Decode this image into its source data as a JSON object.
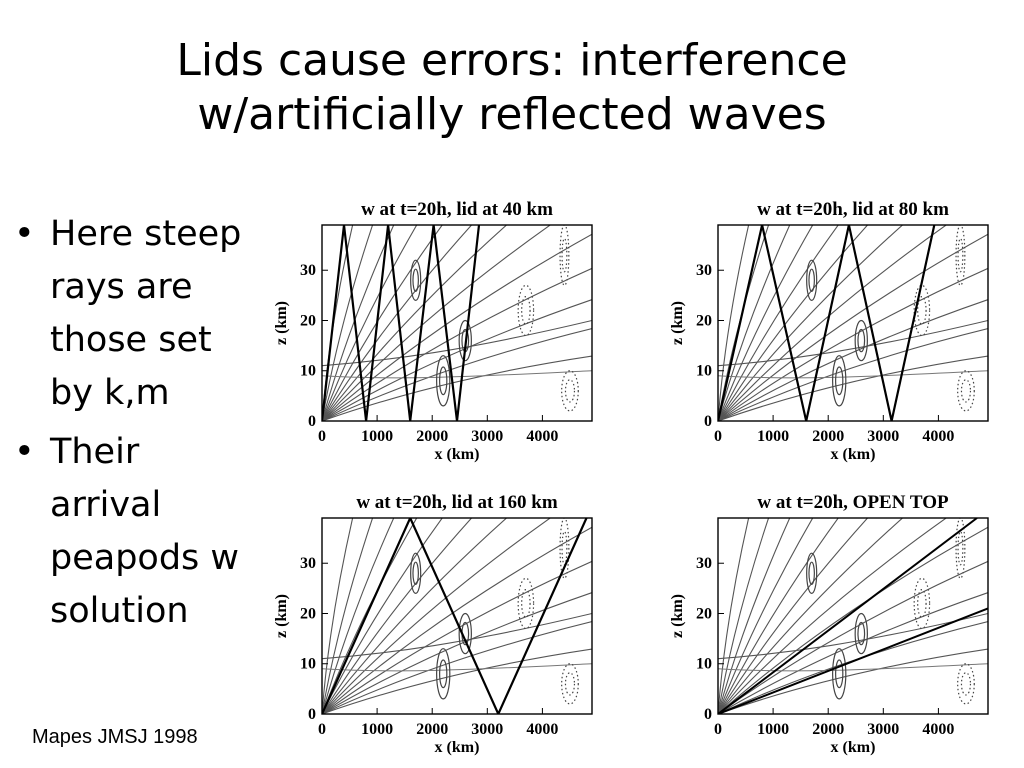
{
  "slide": {
    "title_lines": [
      "Lids cause errors: interference",
      "w/artificially reflected waves"
    ],
    "bullets": [
      {
        "lines": [
          "Here steep",
          "rays are",
          "those set",
          "by k,m"
        ]
      },
      {
        "lines": [
          "Their",
          "arrival",
          "peapods w",
          "solution"
        ]
      }
    ],
    "bullet_glyph": "•",
    "citation": "Mapes JMSJ 1998"
  },
  "figure": {
    "xlabel": "x (km)",
    "ylabel": "z (km)",
    "x_ticks": [
      0,
      1000,
      2000,
      3000,
      4000
    ],
    "y_ticks": [
      0,
      10,
      20,
      30
    ],
    "xlim": [
      0,
      4900
    ],
    "ylim": [
      0,
      39
    ],
    "panels": [
      {
        "title": "w at t=20h, lid at 40 km",
        "lid_km": 40,
        "reflection_x_km": [
          800,
          1600,
          2450
        ]
      },
      {
        "title": "w at t=20h, lid at 80 km",
        "lid_km": 80,
        "reflection_x_km": [
          1600,
          3150
        ]
      },
      {
        "title": "w at t=20h, lid at 160 km",
        "lid_km": 160,
        "reflection_x_km": [
          3200
        ]
      },
      {
        "title": "w at t=20h, OPEN TOP",
        "lid_km": null,
        "reflection_x_km": []
      }
    ]
  }
}
